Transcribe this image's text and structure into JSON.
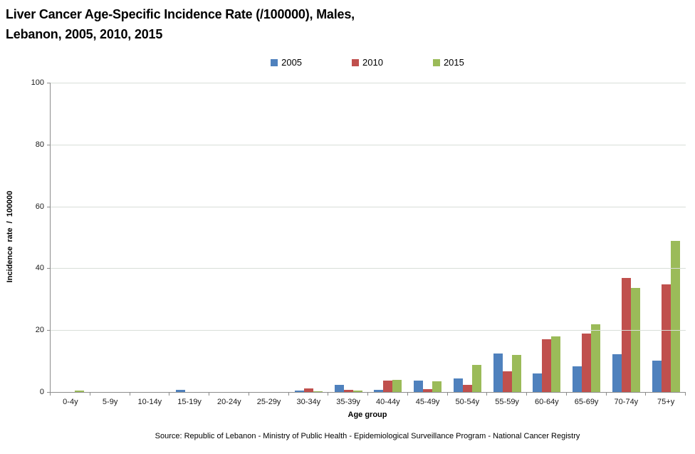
{
  "title": {
    "line1": "Liver Cancer Age-Specific Incidence Rate (/100000), Males,",
    "line2": "Lebanon, 2005, 2010, 2015"
  },
  "legend": [
    {
      "label": "2005",
      "color": "#4F81BD"
    },
    {
      "label": "2010",
      "color": "#C0504D"
    },
    {
      "label": "2015",
      "color": "#9BBB59"
    }
  ],
  "axes": {
    "y_title": "Incidence rate / 100000",
    "x_title": "Age group",
    "y_ticks": [
      0,
      20,
      40,
      60,
      80,
      100
    ]
  },
  "source": "Source: Republic of Lebanon - Ministry of Public Health - Epidemiological Surveillance Program - National Cancer Registry",
  "chart_data": {
    "type": "bar",
    "title": "Liver Cancer Age-Specific Incidence Rate (/100000), Males, Lebanon, 2005, 2010, 2015",
    "categories": [
      "0-4y",
      "5-9y",
      "10-14y",
      "15-19y",
      "20-24y",
      "25-29y",
      "30-34y",
      "35-39y",
      "40-44y",
      "45-49y",
      "50-54y",
      "55-59y",
      "60-64y",
      "65-69y",
      "70-74y",
      "75+y"
    ],
    "series": [
      {
        "name": "2005",
        "color": "#4F81BD",
        "values": [
          0,
          0,
          0,
          0.6,
          0,
          0,
          0.5,
          2.4,
          0.7,
          3.8,
          4.3,
          12.5,
          5.9,
          8.2,
          12.3,
          10.2
        ]
      },
      {
        "name": "2010",
        "color": "#C0504D",
        "values": [
          0,
          0,
          0,
          0,
          0,
          0,
          1.1,
          0.8,
          3.6,
          0.9,
          2.3,
          6.6,
          17.0,
          19.0,
          36.8,
          34.7
        ]
      },
      {
        "name": "2015",
        "color": "#9BBB59",
        "values": [
          0.4,
          0,
          0,
          0,
          0,
          0,
          0.2,
          0.5,
          3.9,
          3.4,
          8.7,
          12.0,
          17.9,
          22.0,
          33.7,
          48.8
        ]
      }
    ],
    "xlabel": "Age group",
    "ylabel": "Incidence rate / 100000",
    "ylim": [
      0,
      100
    ],
    "grid": true,
    "legend_position": "top"
  }
}
